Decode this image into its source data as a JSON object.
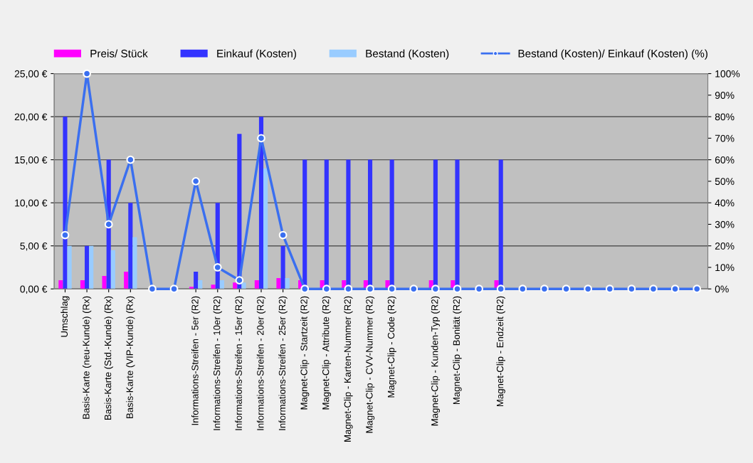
{
  "chart_data": {
    "type": "bar",
    "categories": [
      "Umschlag",
      "Basis-Karte (neu-Kunde) (Rx)",
      "Basis-Karte (Std.-Kunde) (Rx)",
      "Basis-Karte (VIP-Kunde) (Rx)",
      null,
      null,
      "Informations-Streifen - 5er (R2)",
      "Informations-Streifen - 10er (R2)",
      "Informations-Streifen - 15er (R2)",
      "Informations-Streifen - 20er (R2)",
      "Informations-Streifen - 25er (R2)",
      "Magnet-Clip - Startzeit (R2)",
      "Magnet-Clip - Attribute (R2)",
      "Magnet-Clip - Karten-Nummer (R2)",
      "Magnet-Clip - CVV-Nummer (R2)",
      "Magnet-Clip - Code (R2)",
      null,
      "Magnet-Clip - Kunden-Typ (R2)",
      "Magnet-Clip - Bonität (R2)",
      null,
      "Magnet-Clip - Endzeit (R2)",
      null,
      null,
      null,
      null,
      null,
      null,
      null,
      null,
      null
    ],
    "series": [
      {
        "name": "Preis/ Stück",
        "color": "#ff00ff",
        "values": [
          1.0,
          1.0,
          1.5,
          2.0,
          0,
          0,
          0.25,
          0.5,
          0.75,
          1.0,
          1.25,
          1.0,
          1.0,
          1.0,
          1.0,
          1.0,
          0,
          1.0,
          1.0,
          0,
          1.0,
          0,
          0,
          0,
          0,
          0,
          0,
          0,
          0,
          0
        ]
      },
      {
        "name": "Einkauf (Kosten)",
        "color": "#3333ff",
        "values": [
          20,
          5,
          15,
          10,
          0,
          0,
          2,
          10,
          18,
          20,
          5,
          15,
          15,
          15,
          15,
          15,
          0,
          15,
          15,
          0,
          15,
          0,
          0,
          0,
          0,
          0,
          0,
          0,
          0,
          0
        ]
      },
      {
        "name": "Bestand (Kosten)",
        "color": "#99ccff",
        "values": [
          5,
          5,
          4.5,
          6,
          0,
          0,
          1,
          1,
          0.75,
          14,
          1.25,
          0,
          0,
          0,
          0,
          0,
          0,
          0,
          0,
          0,
          0,
          0,
          0,
          0,
          0,
          0,
          0,
          0,
          0,
          0
        ]
      },
      {
        "name": "Bestand (Kosten)/ Einkauf (Kosten) (%)",
        "type": "line",
        "axis": "y2",
        "color": "#3a6ff0",
        "marker": "circle",
        "line_style": "solid",
        "values": [
          25,
          100,
          30,
          60,
          0,
          0,
          50,
          10,
          4,
          70,
          25,
          0,
          0,
          0,
          0,
          0,
          0,
          0,
          0,
          0,
          0,
          0,
          0,
          0,
          0,
          0,
          0,
          0,
          0,
          0
        ]
      }
    ],
    "ylim": [
      0,
      25
    ],
    "yticks": [
      {
        "value": 0,
        "label": "0,00 €"
      },
      {
        "value": 5,
        "label": "5,00 €"
      },
      {
        "value": 10,
        "label": "10,00 €"
      },
      {
        "value": 15,
        "label": "15,00 €"
      },
      {
        "value": 20,
        "label": "20,00 €"
      },
      {
        "value": 25,
        "label": "25,00 €"
      }
    ],
    "y2lim": [
      0,
      100
    ],
    "y2ticks": [
      {
        "value": 0,
        "label": "0%"
      },
      {
        "value": 10,
        "label": "10%"
      },
      {
        "value": 20,
        "label": "20%"
      },
      {
        "value": 30,
        "label": "30%"
      },
      {
        "value": 40,
        "label": "40%"
      },
      {
        "value": 50,
        "label": "50%"
      },
      {
        "value": 60,
        "label": "60%"
      },
      {
        "value": 70,
        "label": "70%"
      },
      {
        "value": 80,
        "label": "80%"
      },
      {
        "value": 90,
        "label": "90%"
      },
      {
        "value": 100,
        "label": "100%"
      }
    ],
    "grid": "y",
    "legend": "top"
  }
}
